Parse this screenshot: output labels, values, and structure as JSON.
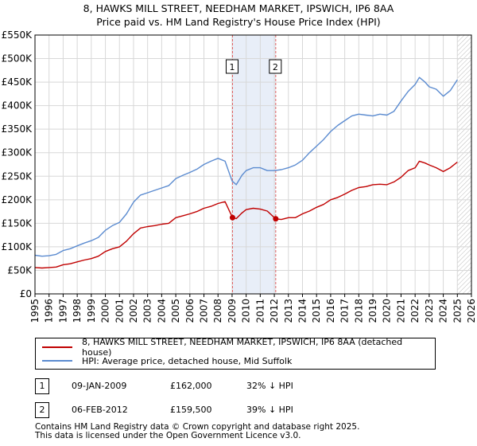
{
  "title": {
    "line1": "8, HAWKS MILL STREET, NEEDHAM MARKET, IPSWICH, IP6 8AA",
    "line2": "Price paid vs. HM Land Registry's House Price Index (HPI)"
  },
  "colors": {
    "property": "#c00000",
    "hpi": "#5b8bd0",
    "shade": "#e8eef8",
    "marker_line": "#e06060",
    "grid": "#d8d8d8"
  },
  "chart_data": {
    "type": "line",
    "title": "Price paid vs. HM Land Registry's House Price Index (HPI)",
    "xlabel": "",
    "ylabel": "",
    "xlim": [
      1995,
      2026
    ],
    "ylim": [
      0,
      550000
    ],
    "x_ticks": [
      "1995",
      "1996",
      "1997",
      "1998",
      "1999",
      "2000",
      "2001",
      "2002",
      "2003",
      "2004",
      "2005",
      "2006",
      "2007",
      "2008",
      "2009",
      "2010",
      "2011",
      "2012",
      "2013",
      "2014",
      "2015",
      "2016",
      "2017",
      "2018",
      "2019",
      "2020",
      "2021",
      "2022",
      "2023",
      "2024",
      "2025",
      "2026"
    ],
    "y_ticks": [
      {
        "value": 0,
        "label": "£0"
      },
      {
        "value": 50000,
        "label": "£50K"
      },
      {
        "value": 100000,
        "label": "£100K"
      },
      {
        "value": 150000,
        "label": "£150K"
      },
      {
        "value": 200000,
        "label": "£200K"
      },
      {
        "value": 250000,
        "label": "£250K"
      },
      {
        "value": 300000,
        "label": "£300K"
      },
      {
        "value": 350000,
        "label": "£350K"
      },
      {
        "value": 400000,
        "label": "£400K"
      },
      {
        "value": 450000,
        "label": "£450K"
      },
      {
        "value": 500000,
        "label": "£500K"
      },
      {
        "value": 550000,
        "label": "£550K"
      }
    ],
    "grid": true,
    "shaded_period": [
      2009.03,
      2012.1
    ],
    "future_hatch_from": 2025.0,
    "series": [
      {
        "name": "8, HAWKS MILL STREET, NEEDHAM MARKET, IPSWICH, IP6 8AA (detached house)",
        "x": [
          1995,
          1995.5,
          1996,
          1996.5,
          1997,
          1997.5,
          1998,
          1998.5,
          1999,
          1999.5,
          2000,
          2000.5,
          2001,
          2001.5,
          2002,
          2002.5,
          2003,
          2003.5,
          2004,
          2004.5,
          2005,
          2005.5,
          2006,
          2006.5,
          2007,
          2007.5,
          2008,
          2008.5,
          2009.03,
          2009.3,
          2009.7,
          2010,
          2010.5,
          2011,
          2011.5,
          2012.1,
          2012.5,
          2013,
          2013.5,
          2014,
          2014.5,
          2015,
          2015.5,
          2016,
          2016.5,
          2017,
          2017.5,
          2018,
          2018.5,
          2019,
          2019.5,
          2020,
          2020.5,
          2021,
          2021.5,
          2022,
          2022.3,
          2022.7,
          2023,
          2023.5,
          2024,
          2024.5,
          2025
        ],
        "values": [
          56000,
          55000,
          56000,
          57000,
          62000,
          64000,
          68000,
          72000,
          75000,
          80000,
          90000,
          96000,
          100000,
          112000,
          128000,
          140000,
          143000,
          145000,
          148000,
          150000,
          162000,
          166000,
          170000,
          175000,
          182000,
          186000,
          192000,
          196000,
          162000,
          160000,
          172000,
          179000,
          182000,
          180000,
          176000,
          159500,
          158000,
          162000,
          162000,
          170000,
          176000,
          184000,
          190000,
          200000,
          205000,
          212000,
          220000,
          226000,
          228000,
          232000,
          233000,
          232000,
          238000,
          248000,
          262000,
          268000,
          282000,
          278000,
          274000,
          268000,
          260000,
          268000,
          280000
        ]
      },
      {
        "name": "HPI: Average price, detached house, Mid Suffolk",
        "x": [
          1995,
          1995.5,
          1996,
          1996.5,
          1997,
          1997.5,
          1998,
          1998.5,
          1999,
          1999.5,
          2000,
          2000.5,
          2001,
          2001.5,
          2002,
          2002.5,
          2003,
          2003.5,
          2004,
          2004.5,
          2005,
          2005.5,
          2006,
          2006.5,
          2007,
          2007.5,
          2008,
          2008.5,
          2009,
          2009.3,
          2009.7,
          2010,
          2010.5,
          2011,
          2011.5,
          2012,
          2012.5,
          2013,
          2013.5,
          2014,
          2014.5,
          2015,
          2015.5,
          2016,
          2016.5,
          2017,
          2017.5,
          2018,
          2018.5,
          2019,
          2019.5,
          2020,
          2020.5,
          2021,
          2021.5,
          2022,
          2022.3,
          2022.7,
          2023,
          2023.5,
          2024,
          2024.5,
          2025
        ],
        "values": [
          82000,
          80000,
          81000,
          84000,
          92000,
          96000,
          102000,
          108000,
          113000,
          120000,
          135000,
          145000,
          152000,
          170000,
          195000,
          210000,
          215000,
          220000,
          225000,
          230000,
          245000,
          252000,
          258000,
          265000,
          275000,
          282000,
          288000,
          282000,
          240000,
          232000,
          252000,
          262000,
          268000,
          268000,
          262000,
          262000,
          264000,
          268000,
          274000,
          284000,
          300000,
          314000,
          328000,
          345000,
          358000,
          368000,
          378000,
          382000,
          380000,
          378000,
          382000,
          380000,
          388000,
          410000,
          430000,
          445000,
          460000,
          450000,
          440000,
          435000,
          420000,
          432000,
          455000
        ]
      }
    ],
    "sales": [
      {
        "id": "1",
        "x": 2009.03,
        "value": 162000
      },
      {
        "id": "2",
        "x": 2012.1,
        "value": 159500
      }
    ]
  },
  "legend": {
    "property": "8, HAWKS MILL STREET, NEEDHAM MARKET, IPSWICH, IP6 8AA (detached house)",
    "hpi": "HPI: Average price, detached house, Mid Suffolk"
  },
  "transactions": [
    {
      "id": "1",
      "date": "09-JAN-2009",
      "price": "£162,000",
      "hpi": "32% ↓ HPI"
    },
    {
      "id": "2",
      "date": "06-FEB-2012",
      "price": "£159,500",
      "hpi": "39% ↓ HPI"
    }
  ],
  "footer": {
    "line1": "Contains HM Land Registry data © Crown copyright and database right 2025.",
    "line2": "This data is licensed under the Open Government Licence v3.0."
  }
}
